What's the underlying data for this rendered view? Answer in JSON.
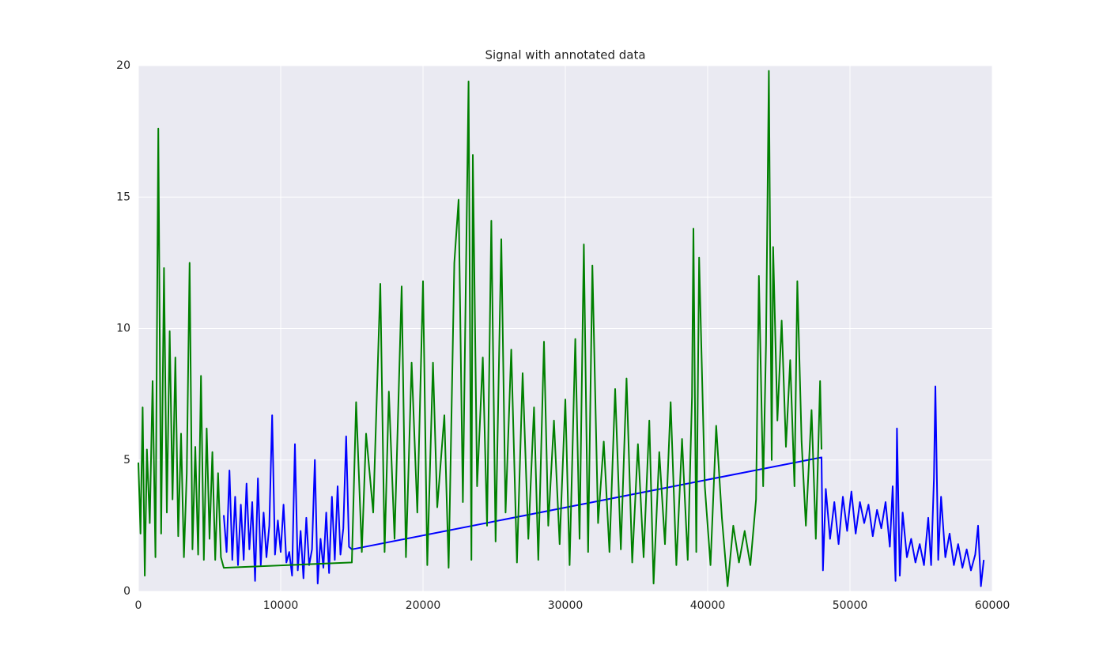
{
  "chart_data": {
    "type": "line",
    "title": "Signal with annotated data",
    "xlim": [
      0,
      60000
    ],
    "xticks": [
      0,
      10000,
      20000,
      30000,
      40000,
      50000,
      60000
    ],
    "ylim": [
      0,
      20
    ],
    "yticks": [
      0,
      5,
      10,
      15,
      20
    ],
    "grid": true,
    "series": [
      {
        "color": "#0000ff",
        "x": [
          6000,
          6200,
          6400,
          6600,
          6800,
          7000,
          7200,
          7400,
          7600,
          7800,
          8000,
          8200,
          8400,
          8600,
          8800,
          9000,
          9200,
          9400,
          9600,
          9800,
          10000,
          10200,
          10400,
          10600,
          10800,
          11000,
          11200,
          11400,
          11600,
          11800,
          12000,
          12200,
          12400,
          12600,
          12800,
          13000,
          13200,
          13400,
          13600,
          13800,
          14000,
          14200,
          14400,
          14600,
          14800,
          15000,
          48000,
          48100,
          48300,
          48600,
          48900,
          49200,
          49500,
          49800,
          50100,
          50400,
          50700,
          51000,
          51300,
          51600,
          51900,
          52200,
          52500,
          52800,
          53000,
          53200,
          53300,
          53500,
          53700,
          54000,
          54300,
          54600,
          54900,
          55200,
          55500,
          55700,
          55900,
          56000,
          56200,
          56400,
          56700,
          57000,
          57300,
          57600,
          57900,
          58200,
          58500,
          58800,
          59000,
          59200,
          59400
        ],
        "values": [
          2.9,
          1.5,
          4.6,
          1.2,
          3.6,
          1.0,
          3.3,
          1.2,
          4.1,
          1.6,
          3.4,
          0.4,
          4.3,
          1.0,
          3.0,
          1.3,
          2.5,
          6.7,
          1.4,
          2.7,
          1.5,
          3.3,
          1.1,
          1.5,
          0.6,
          5.6,
          0.8,
          2.3,
          0.5,
          2.8,
          1.0,
          1.6,
          5.0,
          0.3,
          2.0,
          0.9,
          3.0,
          0.7,
          3.6,
          1.2,
          4.0,
          1.4,
          2.4,
          5.9,
          1.7,
          1.6,
          5.1,
          0.8,
          3.9,
          2.0,
          3.4,
          1.8,
          3.6,
          2.3,
          3.8,
          2.2,
          3.4,
          2.6,
          3.3,
          2.1,
          3.1,
          2.4,
          3.4,
          1.7,
          4.0,
          0.4,
          6.2,
          0.6,
          3.0,
          1.3,
          2.0,
          1.1,
          1.8,
          1.0,
          2.8,
          1.0,
          4.3,
          7.8,
          1.2,
          3.6,
          1.3,
          2.2,
          1.0,
          1.8,
          0.9,
          1.6,
          0.8,
          1.4,
          2.5,
          0.2,
          1.2
        ]
      },
      {
        "color": "#008000",
        "x": [
          0,
          150,
          300,
          450,
          600,
          800,
          1000,
          1200,
          1400,
          1600,
          1800,
          2000,
          2200,
          2400,
          2600,
          2800,
          3000,
          3200,
          3400,
          3600,
          3800,
          4000,
          4200,
          4400,
          4600,
          4800,
          5000,
          5200,
          5400,
          5600,
          5800,
          6000,
          15000,
          15300,
          15700,
          16000,
          16500,
          17000,
          17300,
          17600,
          18000,
          18500,
          18800,
          19200,
          19600,
          20000,
          20300,
          20700,
          21000,
          21500,
          21800,
          22200,
          22500,
          22800,
          23200,
          23400,
          23500,
          23800,
          24200,
          24500,
          24800,
          25100,
          25500,
          25800,
          26200,
          26600,
          27000,
          27400,
          27800,
          28100,
          28500,
          28800,
          29200,
          29600,
          30000,
          30300,
          30700,
          31000,
          31300,
          31600,
          31900,
          32300,
          32700,
          33100,
          33500,
          33900,
          34300,
          34700,
          35100,
          35500,
          35900,
          36200,
          36600,
          37000,
          37400,
          37800,
          38200,
          38600,
          38900,
          39000,
          39200,
          39400,
          39800,
          40200,
          40600,
          41000,
          41400,
          41800,
          42200,
          42600,
          43000,
          43400,
          43600,
          43900,
          44100,
          44300,
          44500,
          44600,
          44900,
          45200,
          45500,
          45800,
          46100,
          46300,
          46600,
          46900,
          47300,
          47600,
          47900,
          48000
        ],
        "values": [
          4.9,
          2.2,
          7.0,
          0.6,
          5.4,
          2.6,
          8.0,
          1.3,
          17.6,
          2.2,
          12.3,
          3.0,
          9.9,
          3.5,
          8.9,
          2.1,
          6.0,
          1.3,
          4.5,
          12.5,
          1.6,
          5.5,
          1.4,
          8.2,
          1.2,
          6.2,
          2.0,
          5.3,
          1.2,
          4.5,
          1.3,
          0.9,
          1.1,
          7.2,
          1.5,
          6.0,
          3.0,
          11.7,
          1.5,
          7.6,
          2.0,
          11.6,
          1.3,
          8.7,
          3.0,
          11.8,
          1.0,
          8.7,
          3.2,
          6.7,
          0.9,
          12.5,
          14.9,
          3.4,
          19.4,
          1.2,
          16.6,
          4.0,
          8.9,
          2.5,
          14.1,
          1.9,
          13.4,
          3.0,
          9.2,
          1.1,
          8.3,
          2.0,
          7.0,
          1.2,
          9.5,
          2.5,
          6.5,
          1.8,
          7.3,
          1.0,
          9.6,
          2.0,
          13.2,
          1.5,
          12.4,
          2.6,
          5.7,
          1.5,
          7.7,
          1.6,
          8.1,
          1.1,
          5.6,
          1.3,
          6.5,
          0.3,
          5.3,
          1.8,
          7.2,
          1.0,
          5.8,
          1.2,
          7.4,
          13.8,
          1.5,
          12.7,
          4.0,
          1.0,
          6.3,
          2.8,
          0.2,
          2.5,
          1.1,
          2.3,
          1.0,
          3.5,
          12.0,
          4.0,
          9.4,
          19.8,
          5.0,
          13.1,
          6.5,
          10.3,
          5.5,
          8.8,
          4.0,
          11.8,
          5.7,
          2.5,
          6.9,
          2.0,
          8.0,
          5.4
        ]
      }
    ]
  }
}
